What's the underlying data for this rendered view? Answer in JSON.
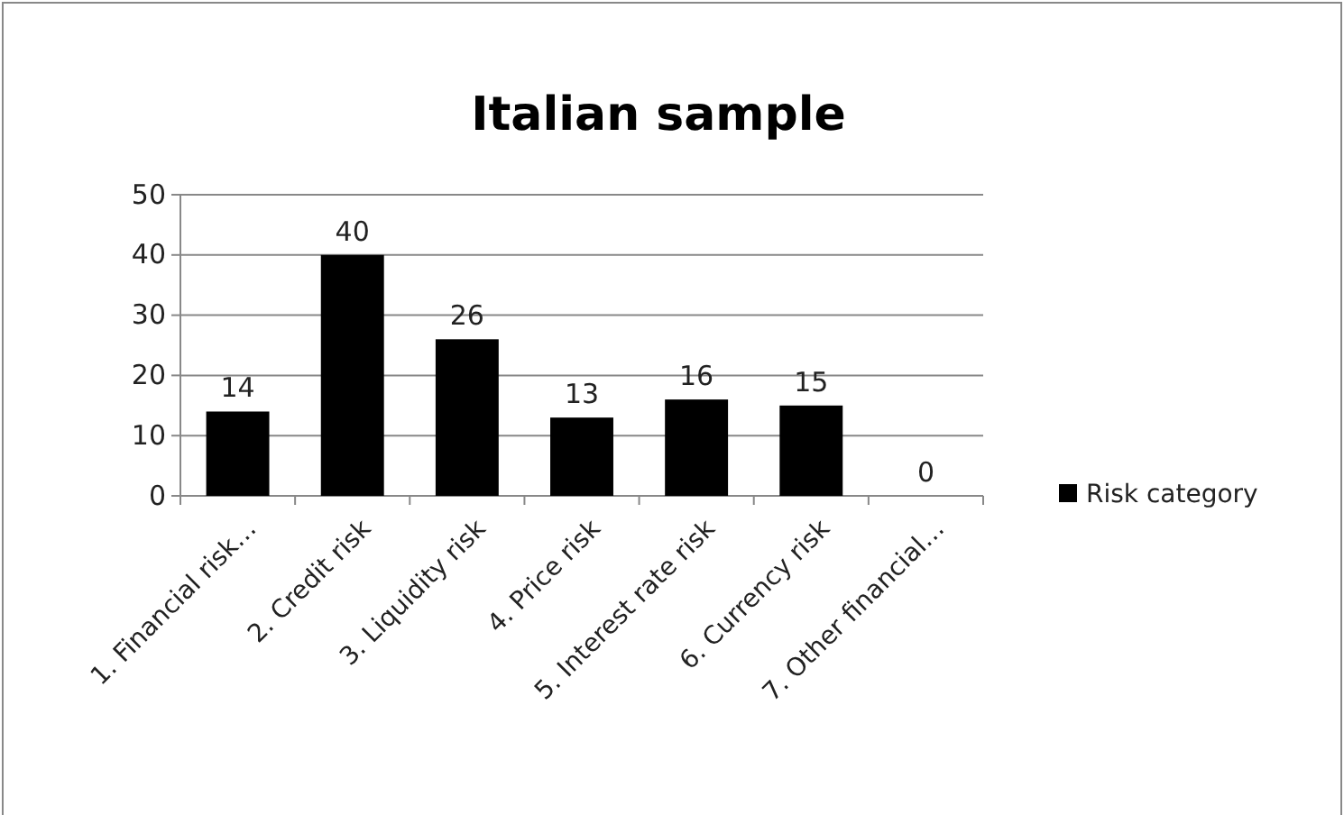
{
  "chart_data": {
    "type": "bar",
    "title": "Italian sample",
    "categories": [
      "1. Financial risk…",
      "2. Credit risk",
      "3. Liquidity risk",
      "4. Price risk",
      "5. Interest rate risk",
      "6. Currency risk",
      "7. Other financial…"
    ],
    "series": [
      {
        "name": "Risk category",
        "color": "#000000",
        "values": [
          14,
          40,
          26,
          13,
          16,
          15,
          0
        ]
      }
    ],
    "ylim": [
      0,
      50
    ],
    "yticks": [
      0,
      10,
      20,
      30,
      40,
      50
    ],
    "grid": "y",
    "legend": "right",
    "data_labels": true
  }
}
